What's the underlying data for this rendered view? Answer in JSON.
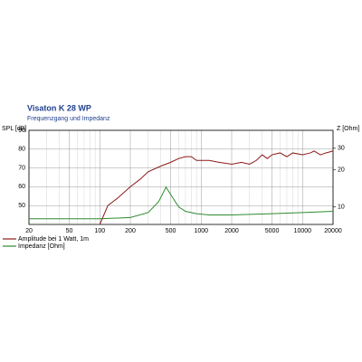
{
  "chart_data": {
    "type": "line",
    "title": "Visaton K 28 WP",
    "subtitle": "Frequenzgang und Impedanz",
    "y_label": "SPL [dB]",
    "y2_label": "Z [Ohm]",
    "xscale": "log",
    "y2scale": "log",
    "grid": true,
    "xlim": [
      20,
      20000
    ],
    "xticks": [
      20,
      50,
      100,
      200,
      500,
      1000,
      2000,
      5000,
      10000,
      20000
    ],
    "xminorticks": [
      30,
      40,
      60,
      70,
      80,
      90,
      300,
      400,
      600,
      700,
      800,
      900,
      3000,
      4000,
      6000,
      7000,
      8000,
      9000
    ],
    "ylim": [
      40,
      90
    ],
    "yticks": [
      50,
      60,
      70,
      80,
      90
    ],
    "y2lim": [
      7.2,
      42
    ],
    "y2ticks": [
      10,
      20,
      30
    ],
    "series": [
      {
        "name": "Amplitude bei 1 Watt, 1m",
        "color": "#8b1a1a",
        "x": [
          100,
          120,
          150,
          200,
          250,
          300,
          400,
          500,
          600,
          700,
          800,
          900,
          1000,
          1200,
          1500,
          2000,
          2500,
          3000,
          3500,
          4000,
          4500,
          5000,
          6000,
          7000,
          8000,
          10000,
          12000,
          13000,
          15000,
          17000,
          20000
        ],
        "values": [
          40,
          50,
          54,
          60,
          64,
          68,
          71,
          73,
          75,
          76,
          76,
          74,
          74,
          74,
          73,
          72,
          73,
          72,
          74,
          77,
          75,
          77,
          78,
          76,
          78,
          77,
          78,
          79,
          77,
          78,
          79
        ]
      },
      {
        "name": "Impedanz [Ohm]",
        "color": "#2e8b2e",
        "axis": "y2",
        "x": [
          20,
          50,
          100,
          200,
          300,
          380,
          450,
          520,
          600,
          700,
          900,
          1200,
          2000,
          5000,
          10000,
          20000
        ],
        "values": [
          8,
          8,
          8,
          8.2,
          9,
          11,
          14.5,
          12,
          10,
          9.2,
          8.8,
          8.6,
          8.6,
          8.8,
          9,
          9.2
        ]
      }
    ],
    "legend": "bottom-left"
  }
}
